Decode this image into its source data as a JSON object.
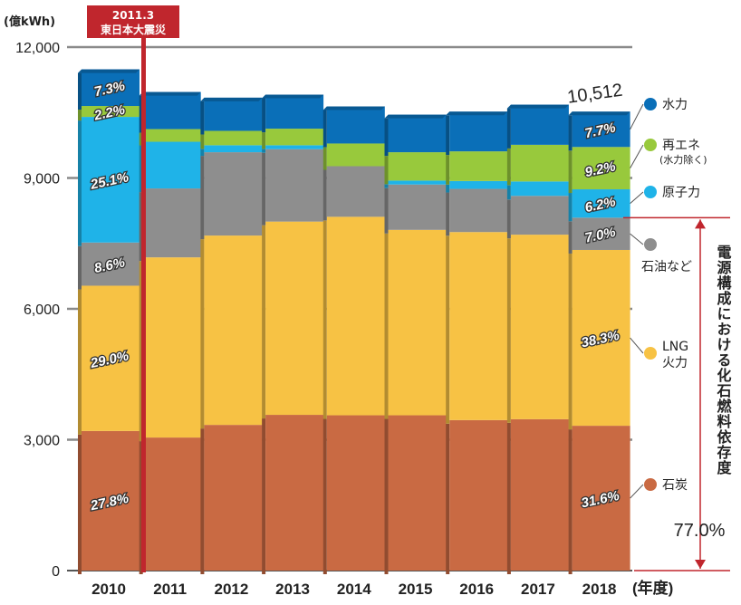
{
  "chart_data": {
    "type": "bar",
    "stacked": true,
    "y_unit_label": "(億kWh)",
    "x_unit_label": "(年度)",
    "ylim": [
      0,
      12000
    ],
    "yticks": [
      "0",
      "3,000",
      "6,000",
      "9,000",
      "12,000"
    ],
    "ytick_values": [
      0,
      3000,
      6000,
      9000,
      12000
    ],
    "grid": true,
    "categories": [
      "2010",
      "2011",
      "2012",
      "2013",
      "2014",
      "2015",
      "2016",
      "2017",
      "2018"
    ],
    "series": [
      {
        "name": "石炭",
        "color": "#c96a43",
        "values": [
          3200,
          3050,
          3340,
          3570,
          3560,
          3560,
          3450,
          3470,
          3320
        ]
      },
      {
        "name": "LNG 火力",
        "color": "#f7c244",
        "values": [
          3330,
          4130,
          4340,
          4430,
          4550,
          4250,
          4310,
          4230,
          4030
        ]
      },
      {
        "name": "石油など",
        "color": "#8e8e8e",
        "values": [
          990,
          1580,
          1910,
          1660,
          1160,
          1040,
          990,
          890,
          740
        ]
      },
      {
        "name": "原子力",
        "color": "#1fb3e8",
        "values": [
          2880,
          1070,
          160,
          90,
          0,
          90,
          180,
          330,
          650
        ]
      },
      {
        "name": "再エネ",
        "name_note": "(水力除く)",
        "color": "#98c93c",
        "values": [
          250,
          290,
          330,
          380,
          520,
          650,
          680,
          840,
          970
        ]
      },
      {
        "name": "水力",
        "color": "#0a6fb8",
        "values": [
          840,
          850,
          760,
          780,
          850,
          860,
          910,
          920,
          810
        ]
      }
    ],
    "labels": [
      {
        "category": "2010",
        "series": "石炭",
        "text": "27.8%"
      },
      {
        "category": "2010",
        "series": "LNG 火力",
        "text": "29.0%"
      },
      {
        "category": "2010",
        "series": "石油など",
        "text": "8.6%"
      },
      {
        "category": "2010",
        "series": "原子力",
        "text": "25.1%"
      },
      {
        "category": "2010",
        "series": "再エネ",
        "text": "2.2%"
      },
      {
        "category": "2010",
        "series": "水力",
        "text": "7.3%"
      },
      {
        "category": "2018",
        "series": "石炭",
        "text": "31.6%"
      },
      {
        "category": "2018",
        "series": "LNG 火力",
        "text": "38.3%"
      },
      {
        "category": "2018",
        "series": "石油など",
        "text": "7.0%"
      },
      {
        "category": "2018",
        "series": "原子力",
        "text": "6.2%"
      },
      {
        "category": "2018",
        "series": "再エネ",
        "text": "9.2%"
      },
      {
        "category": "2018",
        "series": "水力",
        "text": "7.7%"
      }
    ],
    "total_label": {
      "category": "2018",
      "text": "10,512",
      "value": 10512
    },
    "event_marker": {
      "after_category": "2010",
      "line1": "2011.3",
      "line2": "東日本大震災",
      "color": "#c0262d"
    },
    "fossil_bracket": {
      "text": "電源構成における化石燃料依存度",
      "value": "77.0%",
      "color": "#c0262d"
    },
    "legend_position": "right"
  }
}
